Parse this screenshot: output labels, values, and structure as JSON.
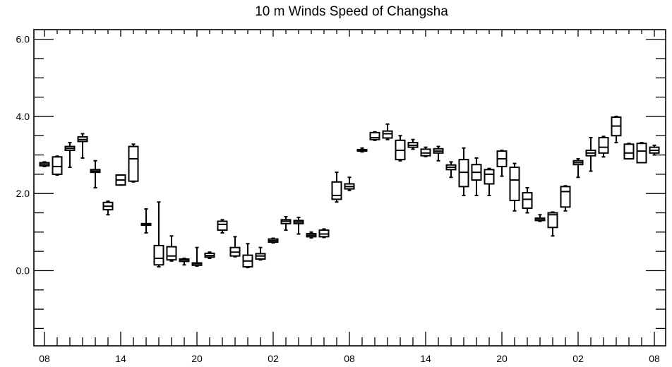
{
  "chart_data": {
    "type": "boxplot",
    "title": "10 m Winds Speed of Changsha",
    "xlabel": "",
    "ylabel": "",
    "ylim": [
      -1.95,
      6.25
    ],
    "y_ticks": [
      0.0,
      2.0,
      4.0,
      6.0
    ],
    "y_tick_labels": [
      "0.0",
      "2.0",
      "4.0",
      "6.0"
    ],
    "x_range": [
      0,
      49
    ],
    "x_ticks": [
      1,
      7,
      13,
      19,
      25,
      31,
      37,
      43,
      49
    ],
    "x_tick_labels": [
      "08",
      "14",
      "20",
      "02",
      "08",
      "14",
      "20",
      "02",
      "08"
    ],
    "boxes": [
      {
        "x": 1,
        "min": 2.7,
        "q1": 2.72,
        "median": 2.76,
        "q3": 2.8,
        "max": 2.82
      },
      {
        "x": 2,
        "min": 2.48,
        "q1": 2.5,
        "median": 2.7,
        "q3": 2.95,
        "max": 2.97
      },
      {
        "x": 3,
        "min": 2.68,
        "q1": 3.12,
        "median": 3.17,
        "q3": 3.22,
        "max": 3.32
      },
      {
        "x": 4,
        "min": 2.92,
        "q1": 3.35,
        "median": 3.4,
        "q3": 3.47,
        "max": 3.55
      },
      {
        "x": 5,
        "min": 2.15,
        "q1": 2.55,
        "median": 2.58,
        "q3": 2.62,
        "max": 2.85
      },
      {
        "x": 6,
        "min": 1.45,
        "q1": 1.58,
        "median": 1.67,
        "q3": 1.77,
        "max": 1.8
      },
      {
        "x": 7,
        "min": 2.22,
        "q1": 2.22,
        "median": 2.35,
        "q3": 2.48,
        "max": 2.48
      },
      {
        "x": 8,
        "min": 2.3,
        "q1": 2.32,
        "median": 2.9,
        "q3": 3.22,
        "max": 3.28
      },
      {
        "x": 9,
        "min": 0.98,
        "q1": 1.18,
        "median": 1.2,
        "q3": 1.22,
        "max": 1.6
      },
      {
        "x": 10,
        "min": 0.1,
        "q1": 0.15,
        "median": 0.32,
        "q3": 0.65,
        "max": 1.78
      },
      {
        "x": 11,
        "min": 0.25,
        "q1": 0.28,
        "median": 0.38,
        "q3": 0.62,
        "max": 0.9
      },
      {
        "x": 12,
        "min": 0.15,
        "q1": 0.24,
        "median": 0.28,
        "q3": 0.3,
        "max": 0.32
      },
      {
        "x": 13,
        "min": 0.12,
        "q1": 0.14,
        "median": 0.18,
        "q3": 0.2,
        "max": 0.6
      },
      {
        "x": 14,
        "min": 0.32,
        "q1": 0.35,
        "median": 0.39,
        "q3": 0.45,
        "max": 0.48
      },
      {
        "x": 15,
        "min": 0.98,
        "q1": 1.05,
        "median": 1.2,
        "q3": 1.28,
        "max": 1.32
      },
      {
        "x": 16,
        "min": 0.36,
        "q1": 0.38,
        "median": 0.48,
        "q3": 0.6,
        "max": 0.88
      },
      {
        "x": 17,
        "min": 0.08,
        "q1": 0.1,
        "median": 0.25,
        "q3": 0.4,
        "max": 0.7
      },
      {
        "x": 18,
        "min": 0.28,
        "q1": 0.3,
        "median": 0.38,
        "q3": 0.44,
        "max": 0.6
      },
      {
        "x": 19,
        "min": 0.72,
        "q1": 0.74,
        "median": 0.78,
        "q3": 0.82,
        "max": 0.84
      },
      {
        "x": 20,
        "min": 1.05,
        "q1": 1.22,
        "median": 1.28,
        "q3": 1.32,
        "max": 1.4
      },
      {
        "x": 21,
        "min": 0.95,
        "q1": 1.22,
        "median": 1.26,
        "q3": 1.3,
        "max": 1.38
      },
      {
        "x": 22,
        "min": 0.85,
        "q1": 0.88,
        "median": 0.92,
        "q3": 0.96,
        "max": 1.0
      },
      {
        "x": 23,
        "min": 0.86,
        "q1": 0.88,
        "median": 0.95,
        "q3": 1.05,
        "max": 1.08
      },
      {
        "x": 24,
        "min": 1.78,
        "q1": 1.85,
        "median": 1.95,
        "q3": 2.3,
        "max": 2.55
      },
      {
        "x": 25,
        "min": 2.08,
        "q1": 2.12,
        "median": 2.18,
        "q3": 2.25,
        "max": 2.42
      },
      {
        "x": 26,
        "min": 3.08,
        "q1": 3.1,
        "median": 3.12,
        "q3": 3.14,
        "max": 3.18
      },
      {
        "x": 27,
        "min": 3.38,
        "q1": 3.4,
        "median": 3.45,
        "q3": 3.58,
        "max": 3.6
      },
      {
        "x": 28,
        "min": 3.4,
        "q1": 3.44,
        "median": 3.55,
        "q3": 3.62,
        "max": 3.8
      },
      {
        "x": 29,
        "min": 2.85,
        "q1": 2.88,
        "median": 3.12,
        "q3": 3.38,
        "max": 3.5
      },
      {
        "x": 30,
        "min": 3.15,
        "q1": 3.2,
        "median": 3.25,
        "q3": 3.32,
        "max": 3.4
      },
      {
        "x": 31,
        "min": 2.96,
        "q1": 2.98,
        "median": 3.05,
        "q3": 3.15,
        "max": 3.2
      },
      {
        "x": 32,
        "min": 2.85,
        "q1": 3.05,
        "median": 3.1,
        "q3": 3.16,
        "max": 3.22
      },
      {
        "x": 33,
        "min": 2.42,
        "q1": 2.62,
        "median": 2.68,
        "q3": 2.74,
        "max": 2.82
      },
      {
        "x": 34,
        "min": 1.95,
        "q1": 2.18,
        "median": 2.55,
        "q3": 2.88,
        "max": 3.18
      },
      {
        "x": 35,
        "min": 1.95,
        "q1": 2.35,
        "median": 2.55,
        "q3": 2.75,
        "max": 2.92
      },
      {
        "x": 36,
        "min": 1.95,
        "q1": 2.25,
        "median": 2.5,
        "q3": 2.62,
        "max": 2.65
      },
      {
        "x": 37,
        "min": 2.45,
        "q1": 2.7,
        "median": 2.9,
        "q3": 3.1,
        "max": 3.12
      },
      {
        "x": 38,
        "min": 1.55,
        "q1": 1.82,
        "median": 2.35,
        "q3": 2.68,
        "max": 2.78
      },
      {
        "x": 39,
        "min": 1.5,
        "q1": 1.62,
        "median": 1.85,
        "q3": 2.02,
        "max": 2.15
      },
      {
        "x": 40,
        "min": 1.28,
        "q1": 1.3,
        "median": 1.32,
        "q3": 1.36,
        "max": 1.45
      },
      {
        "x": 41,
        "min": 0.9,
        "q1": 1.12,
        "median": 1.45,
        "q3": 1.5,
        "max": 1.52
      },
      {
        "x": 42,
        "min": 1.55,
        "q1": 1.65,
        "median": 2.05,
        "q3": 2.18,
        "max": 2.2
      },
      {
        "x": 43,
        "min": 2.42,
        "q1": 2.75,
        "median": 2.8,
        "q3": 2.85,
        "max": 2.9
      },
      {
        "x": 44,
        "min": 2.58,
        "q1": 2.98,
        "median": 3.05,
        "q3": 3.12,
        "max": 3.45
      },
      {
        "x": 45,
        "min": 2.95,
        "q1": 3.05,
        "median": 3.2,
        "q3": 3.45,
        "max": 3.48
      },
      {
        "x": 46,
        "min": 3.32,
        "q1": 3.5,
        "median": 3.75,
        "q3": 3.98,
        "max": 4.0
      },
      {
        "x": 47,
        "min": 2.9,
        "q1": 2.9,
        "median": 3.05,
        "q3": 3.28,
        "max": 3.3
      },
      {
        "x": 48,
        "min": 2.8,
        "q1": 2.8,
        "median": 3.1,
        "q3": 3.3,
        "max": 3.32
      },
      {
        "x": 49,
        "min": 3.0,
        "q1": 3.05,
        "median": 3.12,
        "q3": 3.2,
        "max": 3.25
      }
    ],
    "grid": false,
    "legend": "none"
  }
}
